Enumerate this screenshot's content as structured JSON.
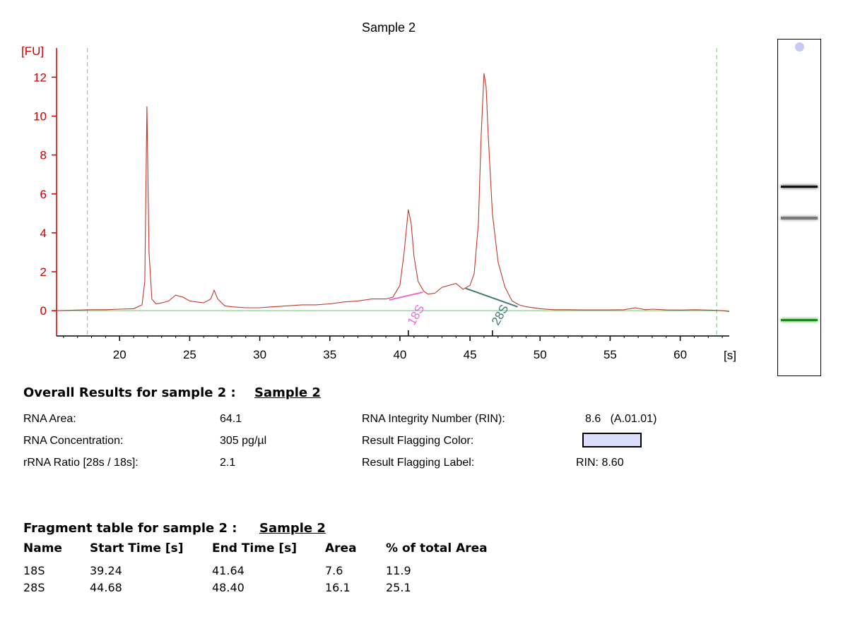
{
  "chart_data": {
    "type": "line",
    "title": "Sample 2",
    "xlabel": "[s]",
    "ylabel": "[FU]",
    "xlim": [
      15.5,
      63.5
    ],
    "ylim": [
      -1.3,
      13.5
    ],
    "xticks": [
      20,
      25,
      30,
      35,
      40,
      45,
      50,
      55,
      60
    ],
    "yticks": [
      0,
      2,
      4,
      6,
      8,
      10,
      12
    ],
    "grid": false,
    "boundaries": [
      17.7,
      62.6
    ],
    "series": [
      {
        "color": "#c0392b",
        "x": [
          15.5,
          17,
          18,
          19,
          20,
          21,
          21.6,
          21.8,
          21.95,
          22.1,
          22.3,
          22.6,
          23,
          23.5,
          24,
          24.5,
          25,
          25.5,
          26,
          26.5,
          26.75,
          27,
          27.5,
          28,
          29,
          30,
          31,
          32,
          33,
          34,
          35,
          36,
          37,
          38,
          39,
          39.5,
          40,
          40.3,
          40.6,
          40.8,
          41,
          41.3,
          41.7,
          42,
          42.5,
          43,
          43.5,
          44,
          44.5,
          45,
          45.3,
          45.6,
          45.8,
          46,
          46.15,
          46.3,
          46.6,
          47,
          47.5,
          48,
          48.5,
          49,
          50,
          51,
          52,
          53,
          54,
          55,
          56,
          56.8,
          57.5,
          58,
          59,
          60,
          61,
          62,
          63,
          63.5
        ],
        "y": [
          0.0,
          0.03,
          0.05,
          0.05,
          0.08,
          0.1,
          0.3,
          1.5,
          10.5,
          3.0,
          0.6,
          0.35,
          0.4,
          0.5,
          0.8,
          0.7,
          0.5,
          0.45,
          0.4,
          0.6,
          1.05,
          0.6,
          0.25,
          0.2,
          0.15,
          0.15,
          0.2,
          0.25,
          0.3,
          0.3,
          0.35,
          0.45,
          0.5,
          0.6,
          0.6,
          0.7,
          1.3,
          3.0,
          5.2,
          4.5,
          2.8,
          1.5,
          1.0,
          0.85,
          0.9,
          1.2,
          1.3,
          1.4,
          1.1,
          1.3,
          1.9,
          4.5,
          9.0,
          12.2,
          11.5,
          9.0,
          5.0,
          2.5,
          1.2,
          0.5,
          0.3,
          0.2,
          0.1,
          0.05,
          0.05,
          0.04,
          0.04,
          0.04,
          0.05,
          0.15,
          0.05,
          0.08,
          0.04,
          0.03,
          0.05,
          0.03,
          0.0,
          -0.05
        ]
      }
    ],
    "fragments": [
      {
        "label": "18S",
        "color": "#e86ee0",
        "x1": 39.24,
        "y1": 0.55,
        "x2": 41.64,
        "y2": 0.95,
        "marker_x": 40.6
      },
      {
        "label": "28S",
        "color": "#3d7a78",
        "x1": 44.68,
        "y1": 1.15,
        "x2": 48.4,
        "y2": 0.2,
        "marker_x": 46.6
      }
    ]
  },
  "gel": {
    "dot_color": "#c9c9f5",
    "bands": [
      {
        "position": 0.438,
        "color": "#111111",
        "thickness": 0.008
      },
      {
        "position": 0.532,
        "color": "#7a7a7a",
        "thickness": 0.008
      },
      {
        "position": 0.835,
        "color": "#1a8a1a",
        "thickness": 0.008
      }
    ]
  },
  "overall": {
    "heading": "Overall Results for sample 2  :",
    "sample_name": "Sample 2",
    "rna_area_label": "RNA Area:",
    "rna_area_value": "64.1",
    "rna_conc_label": "RNA Concentration:",
    "rna_conc_value": "305 pg/µl",
    "rrna_ratio_label": "rRNA Ratio [28s / 18s]:",
    "rrna_ratio_value": "2.1",
    "rin_label": "RNA Integrity Number (RIN):",
    "rin_value": "8.6   (A.01.01)",
    "flag_color_label": "Result Flagging Color:",
    "flag_color": "#dcdcfc",
    "flag_label_label": "Result Flagging Label:",
    "flag_label_value": "RIN: 8.60"
  },
  "fragment_table": {
    "heading": "Fragment table for sample 2  :",
    "sample_name": "Sample 2",
    "columns": [
      "Name",
      "Start Time [s]",
      "End Time [s]",
      "Area",
      "% of total Area"
    ],
    "rows": [
      [
        "18S",
        "39.24",
        "41.64",
        "7.6",
        "11.9"
      ],
      [
        "28S",
        "44.68",
        "48.40",
        "16.1",
        "25.1"
      ]
    ]
  }
}
